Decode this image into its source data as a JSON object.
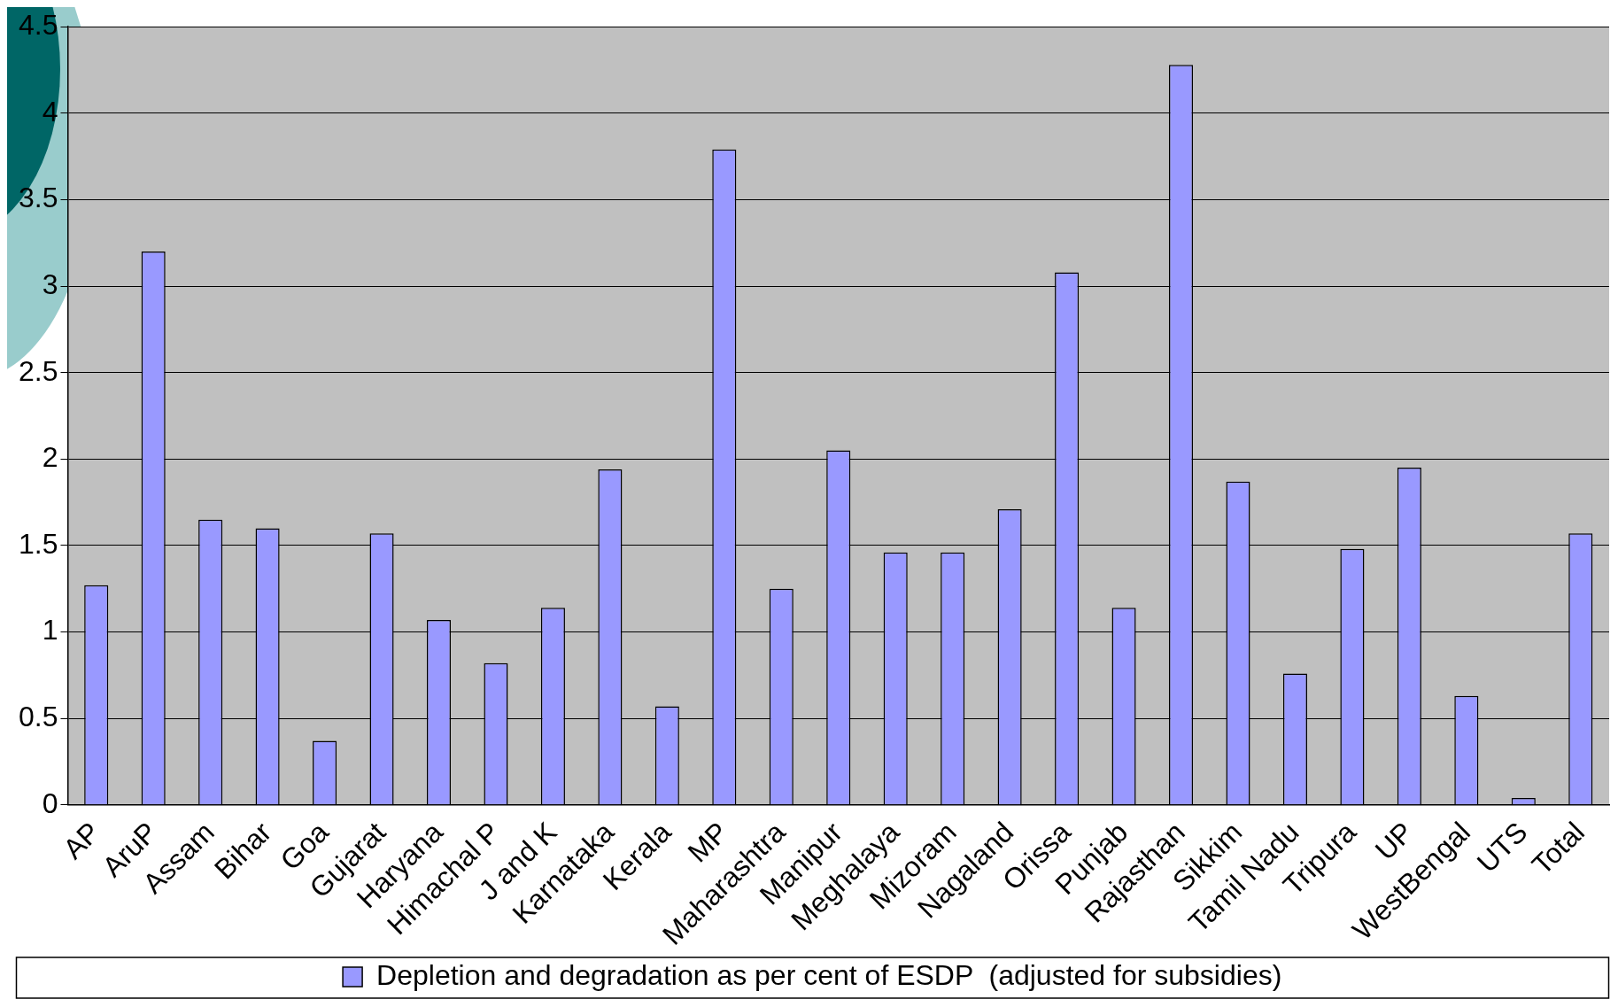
{
  "chart_data": {
    "type": "bar",
    "categories": [
      "AP",
      "AruP",
      "Assam",
      "Bihar",
      "Goa",
      "Gujarat",
      "Haryana",
      "Himachal P",
      "J and K",
      "Karnataka",
      "Kerala",
      "MP",
      "Maharashtra",
      "Manipur",
      "Meghalaya",
      "Mizoram",
      "Nagaland",
      "Orissa",
      "Punjab",
      "Rajasthan",
      "Sikkim",
      "Tamil Nadu",
      "Tripura",
      "UP",
      "WestBengal",
      "UTS",
      "Total"
    ],
    "series": [
      {
        "name": "Depletion and degradation as per cent of ESDP  (adjusted for subsidies)",
        "color": "#9999ff",
        "values": [
          1.27,
          3.2,
          1.65,
          1.6,
          0.37,
          1.57,
          1.07,
          0.82,
          1.14,
          1.94,
          0.57,
          3.79,
          1.25,
          2.05,
          1.46,
          1.46,
          1.71,
          3.08,
          1.14,
          4.28,
          1.87,
          0.76,
          1.48,
          1.95,
          0.63,
          0.04,
          1.57
        ]
      }
    ],
    "ylim": [
      0,
      4.5
    ],
    "yticks": [
      0,
      0.5,
      1,
      1.5,
      2,
      2.5,
      3,
      3.5,
      4,
      4.5
    ],
    "grid": "y",
    "legend": "bottom"
  }
}
